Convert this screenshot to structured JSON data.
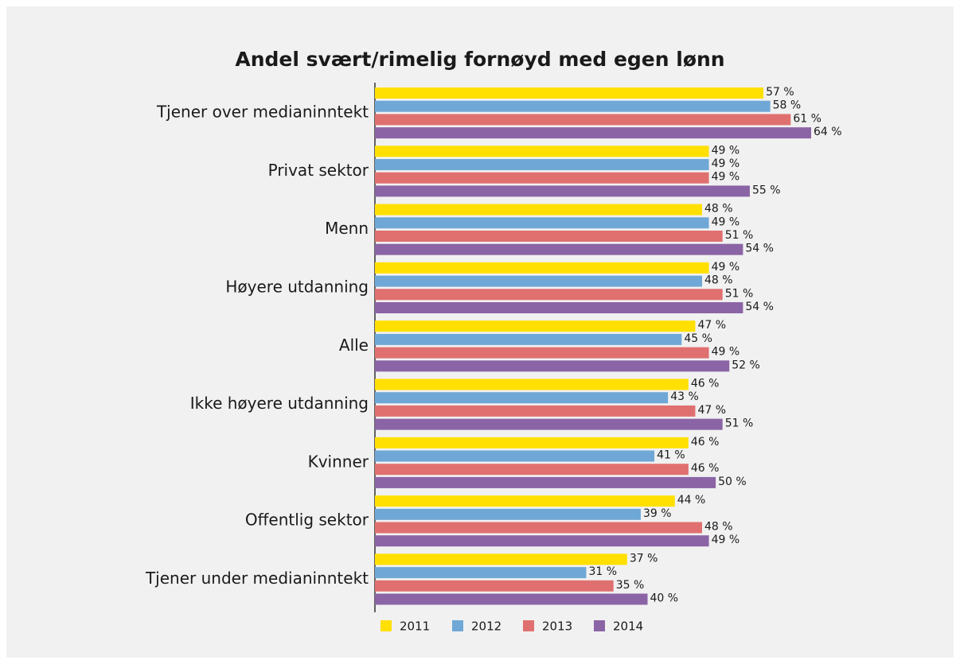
{
  "chart_data": {
    "type": "bar",
    "orientation": "horizontal",
    "title": "Andel svært/rimelig fornøyd med egen lønn",
    "categories": [
      "Tjener over medianinntekt",
      "Privat sektor",
      "Menn",
      "Høyere utdanning",
      "Alle",
      "Ikke høyere utdanning",
      "Kvinner",
      "Offentlig sektor",
      "Tjener under medianinntekt"
    ],
    "series": [
      {
        "name": "2011",
        "color": "#ffe000",
        "values": [
          57,
          49,
          48,
          49,
          47,
          46,
          46,
          44,
          37
        ],
        "value_labels": [
          "57 %",
          "49 %",
          "48 %",
          "49 %",
          "47 %",
          "46 %",
          "46 %",
          "44 %",
          "37 %"
        ]
      },
      {
        "name": "2012",
        "color": "#6fa8d6",
        "values": [
          58,
          49,
          49,
          48,
          45,
          43,
          41,
          39,
          31
        ],
        "value_labels": [
          "58 %",
          "49 %",
          "49 %",
          "48 %",
          "45 %",
          "43 %",
          "41 %",
          "39 %",
          "31 %"
        ]
      },
      {
        "name": "2013",
        "color": "#e07070",
        "values": [
          61,
          49,
          51,
          51,
          49,
          47,
          46,
          48,
          35
        ],
        "value_labels": [
          "61 %",
          "49 %",
          "51 %",
          "51 %",
          "49 %",
          "47 %",
          "46 %",
          "48 %",
          "35 %"
        ]
      },
      {
        "name": "2014",
        "color": "#8b64a6",
        "values": [
          64,
          55,
          54,
          54,
          52,
          51,
          50,
          49,
          40
        ],
        "value_labels": [
          "64 %",
          "55 %",
          "54 %",
          "54 %",
          "52 %",
          "51 %",
          "50 %",
          "49 %",
          "40 %"
        ]
      }
    ]
  }
}
